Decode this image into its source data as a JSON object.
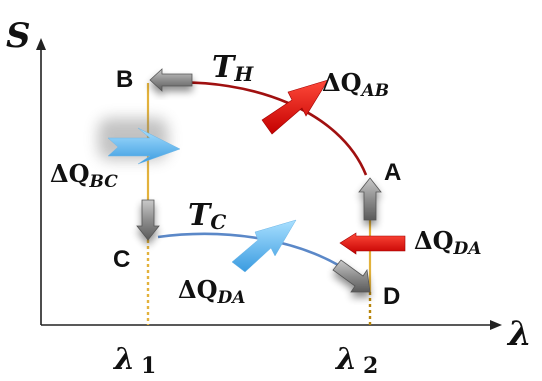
{
  "axes": {
    "y_label": "S",
    "x_label": "λ",
    "ticks": [
      {
        "symbol": "λ",
        "sub": "1"
      },
      {
        "symbol": "λ",
        "sub": "2"
      }
    ]
  },
  "points": {
    "A": "A",
    "B": "B",
    "C": "C",
    "D": "D"
  },
  "temperatures": {
    "hot": {
      "symbol": "T",
      "sub": "H"
    },
    "cold": {
      "symbol": "T",
      "sub": "C"
    }
  },
  "heat_flows": {
    "ab": {
      "prefix": "ΔQ",
      "sub": "AB"
    },
    "bc": {
      "prefix": "ΔQ",
      "sub": "BC"
    },
    "da_right": {
      "prefix": "ΔQ",
      "sub": "DA"
    },
    "da_bottom": {
      "prefix": "ΔQ",
      "sub": "DA"
    }
  },
  "colors": {
    "hot_curve": "#a01010",
    "cold_curve": "#5b88c8",
    "vertical_lines": "#e3b23c",
    "hot_arrow": "#ee1111",
    "cold_arrow": "#5bb6f0",
    "process_arrow": "#8a8a8a"
  }
}
